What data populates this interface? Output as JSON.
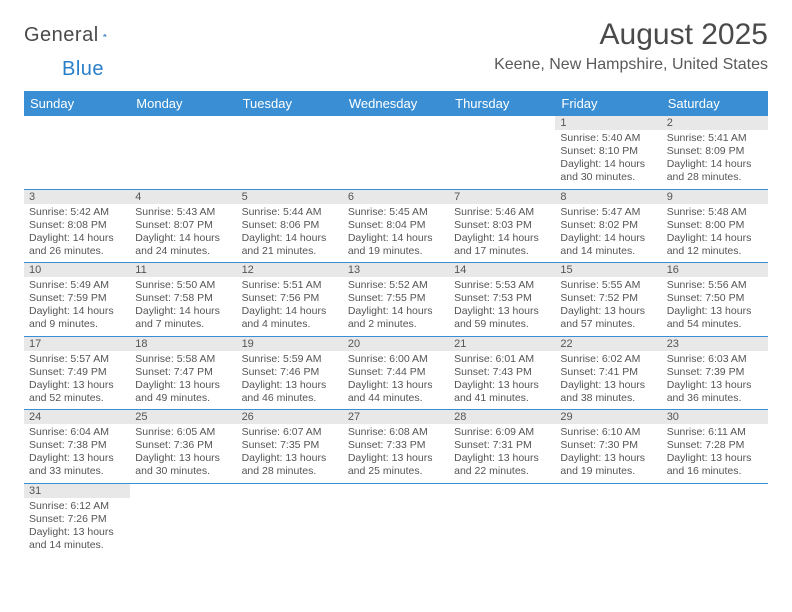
{
  "brand": {
    "part1": "General",
    "part2": "Blue"
  },
  "title": "August 2025",
  "location": "Keene, New Hampshire, United States",
  "weekdays": [
    "Sunday",
    "Monday",
    "Tuesday",
    "Wednesday",
    "Thursday",
    "Friday",
    "Saturday"
  ],
  "colors": {
    "header_bg": "#3a8fd4",
    "header_text": "#ffffff",
    "daynum_bg": "#e8e8e8",
    "border": "#3a8fd4",
    "text": "#555555",
    "brand_blue": "#2a7fc9"
  },
  "grid": [
    [
      {
        "day": "",
        "lines": []
      },
      {
        "day": "",
        "lines": []
      },
      {
        "day": "",
        "lines": []
      },
      {
        "day": "",
        "lines": []
      },
      {
        "day": "",
        "lines": []
      },
      {
        "day": "1",
        "lines": [
          "Sunrise: 5:40 AM",
          "Sunset: 8:10 PM",
          "Daylight: 14 hours and 30 minutes."
        ]
      },
      {
        "day": "2",
        "lines": [
          "Sunrise: 5:41 AM",
          "Sunset: 8:09 PM",
          "Daylight: 14 hours and 28 minutes."
        ]
      }
    ],
    [
      {
        "day": "3",
        "lines": [
          "Sunrise: 5:42 AM",
          "Sunset: 8:08 PM",
          "Daylight: 14 hours and 26 minutes."
        ]
      },
      {
        "day": "4",
        "lines": [
          "Sunrise: 5:43 AM",
          "Sunset: 8:07 PM",
          "Daylight: 14 hours and 24 minutes."
        ]
      },
      {
        "day": "5",
        "lines": [
          "Sunrise: 5:44 AM",
          "Sunset: 8:06 PM",
          "Daylight: 14 hours and 21 minutes."
        ]
      },
      {
        "day": "6",
        "lines": [
          "Sunrise: 5:45 AM",
          "Sunset: 8:04 PM",
          "Daylight: 14 hours and 19 minutes."
        ]
      },
      {
        "day": "7",
        "lines": [
          "Sunrise: 5:46 AM",
          "Sunset: 8:03 PM",
          "Daylight: 14 hours and 17 minutes."
        ]
      },
      {
        "day": "8",
        "lines": [
          "Sunrise: 5:47 AM",
          "Sunset: 8:02 PM",
          "Daylight: 14 hours and 14 minutes."
        ]
      },
      {
        "day": "9",
        "lines": [
          "Sunrise: 5:48 AM",
          "Sunset: 8:00 PM",
          "Daylight: 14 hours and 12 minutes."
        ]
      }
    ],
    [
      {
        "day": "10",
        "lines": [
          "Sunrise: 5:49 AM",
          "Sunset: 7:59 PM",
          "Daylight: 14 hours and 9 minutes."
        ]
      },
      {
        "day": "11",
        "lines": [
          "Sunrise: 5:50 AM",
          "Sunset: 7:58 PM",
          "Daylight: 14 hours and 7 minutes."
        ]
      },
      {
        "day": "12",
        "lines": [
          "Sunrise: 5:51 AM",
          "Sunset: 7:56 PM",
          "Daylight: 14 hours and 4 minutes."
        ]
      },
      {
        "day": "13",
        "lines": [
          "Sunrise: 5:52 AM",
          "Sunset: 7:55 PM",
          "Daylight: 14 hours and 2 minutes."
        ]
      },
      {
        "day": "14",
        "lines": [
          "Sunrise: 5:53 AM",
          "Sunset: 7:53 PM",
          "Daylight: 13 hours and 59 minutes."
        ]
      },
      {
        "day": "15",
        "lines": [
          "Sunrise: 5:55 AM",
          "Sunset: 7:52 PM",
          "Daylight: 13 hours and 57 minutes."
        ]
      },
      {
        "day": "16",
        "lines": [
          "Sunrise: 5:56 AM",
          "Sunset: 7:50 PM",
          "Daylight: 13 hours and 54 minutes."
        ]
      }
    ],
    [
      {
        "day": "17",
        "lines": [
          "Sunrise: 5:57 AM",
          "Sunset: 7:49 PM",
          "Daylight: 13 hours and 52 minutes."
        ]
      },
      {
        "day": "18",
        "lines": [
          "Sunrise: 5:58 AM",
          "Sunset: 7:47 PM",
          "Daylight: 13 hours and 49 minutes."
        ]
      },
      {
        "day": "19",
        "lines": [
          "Sunrise: 5:59 AM",
          "Sunset: 7:46 PM",
          "Daylight: 13 hours and 46 minutes."
        ]
      },
      {
        "day": "20",
        "lines": [
          "Sunrise: 6:00 AM",
          "Sunset: 7:44 PM",
          "Daylight: 13 hours and 44 minutes."
        ]
      },
      {
        "day": "21",
        "lines": [
          "Sunrise: 6:01 AM",
          "Sunset: 7:43 PM",
          "Daylight: 13 hours and 41 minutes."
        ]
      },
      {
        "day": "22",
        "lines": [
          "Sunrise: 6:02 AM",
          "Sunset: 7:41 PM",
          "Daylight: 13 hours and 38 minutes."
        ]
      },
      {
        "day": "23",
        "lines": [
          "Sunrise: 6:03 AM",
          "Sunset: 7:39 PM",
          "Daylight: 13 hours and 36 minutes."
        ]
      }
    ],
    [
      {
        "day": "24",
        "lines": [
          "Sunrise: 6:04 AM",
          "Sunset: 7:38 PM",
          "Daylight: 13 hours and 33 minutes."
        ]
      },
      {
        "day": "25",
        "lines": [
          "Sunrise: 6:05 AM",
          "Sunset: 7:36 PM",
          "Daylight: 13 hours and 30 minutes."
        ]
      },
      {
        "day": "26",
        "lines": [
          "Sunrise: 6:07 AM",
          "Sunset: 7:35 PM",
          "Daylight: 13 hours and 28 minutes."
        ]
      },
      {
        "day": "27",
        "lines": [
          "Sunrise: 6:08 AM",
          "Sunset: 7:33 PM",
          "Daylight: 13 hours and 25 minutes."
        ]
      },
      {
        "day": "28",
        "lines": [
          "Sunrise: 6:09 AM",
          "Sunset: 7:31 PM",
          "Daylight: 13 hours and 22 minutes."
        ]
      },
      {
        "day": "29",
        "lines": [
          "Sunrise: 6:10 AM",
          "Sunset: 7:30 PM",
          "Daylight: 13 hours and 19 minutes."
        ]
      },
      {
        "day": "30",
        "lines": [
          "Sunrise: 6:11 AM",
          "Sunset: 7:28 PM",
          "Daylight: 13 hours and 16 minutes."
        ]
      }
    ],
    [
      {
        "day": "31",
        "lines": [
          "Sunrise: 6:12 AM",
          "Sunset: 7:26 PM",
          "Daylight: 13 hours and 14 minutes."
        ]
      },
      {
        "day": "",
        "lines": []
      },
      {
        "day": "",
        "lines": []
      },
      {
        "day": "",
        "lines": []
      },
      {
        "day": "",
        "lines": []
      },
      {
        "day": "",
        "lines": []
      },
      {
        "day": "",
        "lines": []
      }
    ]
  ]
}
